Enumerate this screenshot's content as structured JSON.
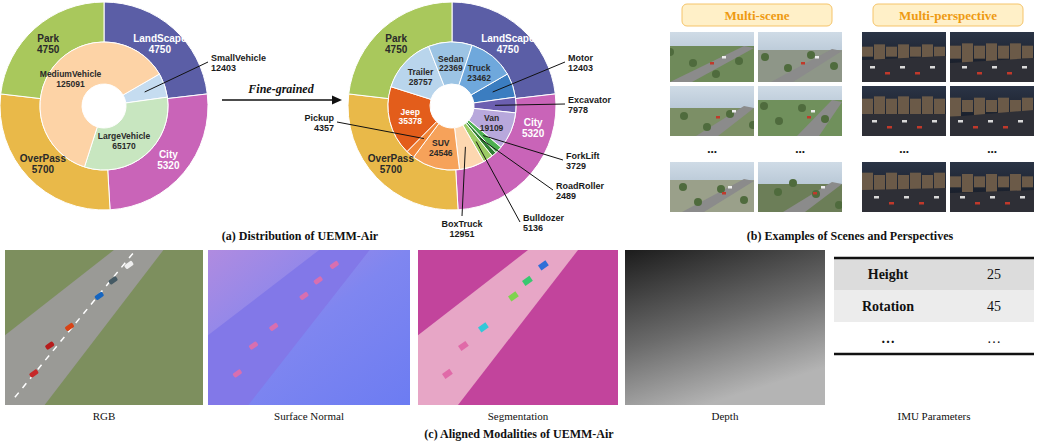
{
  "chart_data": [
    {
      "type": "pie",
      "data_labels": true,
      "series": [
        {
          "categories": [
            "LandScape",
            "City",
            "OverPass",
            "Park"
          ],
          "values": [
            4750,
            5320,
            5700,
            4750
          ],
          "colors": [
            "#5b5ea6",
            "#c964b8",
            "#e9b949",
            "#a9c85c"
          ]
        },
        {
          "categories": [
            "SmallVehicle",
            "LargeVehicle",
            "MediumVehicle"
          ],
          "values": [
            12403,
            65170,
            125091
          ],
          "colors": [
            "#c5dcf0",
            "#c8e6c0",
            "#fdd3a6"
          ]
        }
      ]
    },
    {
      "type": "pie",
      "data_labels": true,
      "series": [
        {
          "categories": [
            "LandScape",
            "City",
            "OverPass",
            "Park"
          ],
          "values": [
            4750,
            5320,
            5700,
            4750
          ],
          "colors": [
            "#5b5ea6",
            "#c964b8",
            "#e9b949",
            "#a9c85c"
          ]
        },
        {
          "categories": [
            "Motor",
            "Excavator",
            "Van",
            "ForkLift",
            "RoadRoller",
            "Bulldozer",
            "BoxTruck",
            "SUV",
            "Pickup",
            "Jeep",
            "Trailer",
            "Sedan",
            "Truck"
          ],
          "values": [
            12403,
            7978,
            19109,
            3729,
            2489,
            5136,
            12951,
            24546,
            4357,
            35378,
            28757,
            22369,
            23462
          ],
          "colors": [
            "#3b7dc0",
            "#6c5fb0",
            "#b8a8dc",
            "#4caf50",
            "#2e7d32",
            "#9ccc65",
            "#fdd7b0",
            "#f6a25a",
            "#f08538",
            "#e35d1b",
            "#b9d5ec",
            "#9cc4e4",
            "#6fa8dc"
          ]
        }
      ]
    }
  ],
  "arrow_label": "Fine-grained",
  "captions": [
    "(a) Distribution of UEMM-Air",
    "(b) Examples of Scenes and Perspectives",
    "(c) Aligned Modalities of UEMM-Air"
  ],
  "scenes_perspectives": {
    "headers": [
      "Multi-scene",
      "Multi-perspective"
    ],
    "ellipsis": "..."
  },
  "modalities": {
    "labels": [
      "RGB",
      "Surface Normal",
      "Segmentation",
      "Depth",
      "IMU Parameters"
    ],
    "table": {
      "rows": [
        [
          "Height",
          25
        ],
        [
          "Rotation",
          45
        ],
        [
          "…",
          "…"
        ]
      ]
    }
  }
}
